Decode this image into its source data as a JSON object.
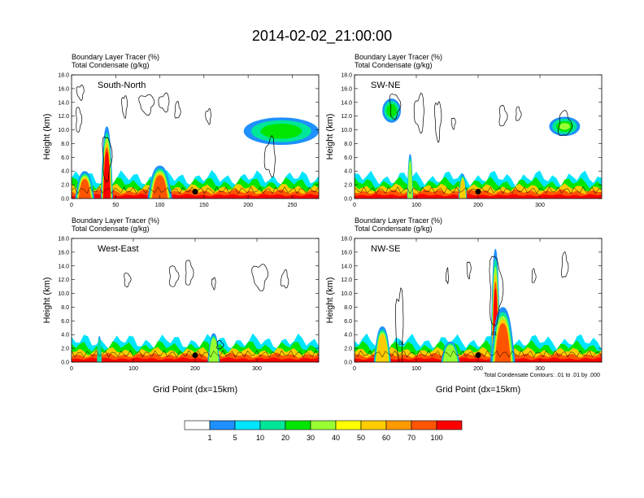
{
  "title": "2014-02-02_21:00:00",
  "colors": {
    "levels": [
      "#ffffff",
      "#1e90ff",
      "#00e5ff",
      "#00e699",
      "#00e600",
      "#99ff33",
      "#ffff00",
      "#ffcc00",
      "#ff9900",
      "#ff5500",
      "#ff0000"
    ],
    "contour": "#000000",
    "marker": "#000000"
  },
  "colorbar": {
    "labels": [
      "1",
      "5",
      "10",
      "20",
      "30",
      "40",
      "50",
      "60",
      "70",
      "100"
    ]
  },
  "note": "Total Condensate Contours: .01 to .01 by .000",
  "chart_data": [
    {
      "type": "heatmap",
      "title": "South-North",
      "subtitle_1": "Boundary Layer Tracer   (%)",
      "subtitle_2": "Total Condensate   (g/kg)",
      "ylabel": "Height (km)",
      "xlabel": "",
      "xlim": [
        0,
        280
      ],
      "ylim": [
        0,
        18
      ],
      "xticks": [
        "0",
        "50",
        "100",
        "150",
        "200",
        "250"
      ],
      "xtick_values": [
        0,
        50,
        100,
        150,
        200,
        250
      ],
      "yticks": [
        "0.0",
        "2.0",
        "4.0",
        "6.0",
        "8.0",
        "10.0",
        "12.0",
        "14.0",
        "16.0",
        "18.0"
      ],
      "marker": {
        "x": 140,
        "y": 1.0
      },
      "plumes": [
        {
          "x": 40,
          "w": 14,
          "top": 10.5,
          "peak": 100
        },
        {
          "x": 100,
          "w": 28,
          "top": 4.8,
          "peak": 70
        },
        {
          "x": 15,
          "w": 22,
          "top": 4.0,
          "peak": 70
        }
      ],
      "anvils": [
        {
          "x0": 195,
          "x1": 280,
          "y": 9.8,
          "h": 4.0,
          "peak": 20
        }
      ],
      "contours": [
        {
          "x": 10,
          "y": 15.5,
          "rx": 4,
          "ry": 1.0
        },
        {
          "x": 8,
          "y": 11.5,
          "rx": 3,
          "ry": 1.8
        },
        {
          "x": 60,
          "y": 13.5,
          "rx": 3,
          "ry": 1.5
        },
        {
          "x": 85,
          "y": 13.8,
          "rx": 8,
          "ry": 1.4
        },
        {
          "x": 105,
          "y": 14.0,
          "rx": 6,
          "ry": 1.2
        },
        {
          "x": 120,
          "y": 12.8,
          "rx": 3,
          "ry": 1.2
        },
        {
          "x": 155,
          "y": 12.0,
          "rx": 3,
          "ry": 1.0
        },
        {
          "x": 225,
          "y": 6.0,
          "rx": 6,
          "ry": 2.6
        },
        {
          "x": 40,
          "y": 6.0,
          "rx": 5,
          "ry": 3.2
        }
      ]
    },
    {
      "type": "heatmap",
      "title": "SW-NE",
      "subtitle_1": "Boundary Layer Tracer   (%)",
      "subtitle_2": "Total Condensate   (g/kg)",
      "ylabel": "Height (km)",
      "xlabel": "",
      "xlim": [
        0,
        400
      ],
      "ylim": [
        0,
        18
      ],
      "xticks": [
        "0",
        "100",
        "200",
        "300"
      ],
      "xtick_values": [
        0,
        100,
        200,
        300
      ],
      "yticks": [
        "0.0",
        "2.0",
        "4.0",
        "6.0",
        "8.0",
        "10.0",
        "12.0",
        "14.0",
        "16.0",
        "18.0"
      ],
      "marker": {
        "x": 200,
        "y": 1.0
      },
      "plumes": [
        {
          "x": 90,
          "w": 10,
          "top": 6.5,
          "peak": 30
        },
        {
          "x": 175,
          "w": 14,
          "top": 3.6,
          "peak": 60
        }
      ],
      "anvils": [
        {
          "x0": 45,
          "x1": 75,
          "y": 12.8,
          "h": 3.5,
          "peak": 20
        },
        {
          "x0": 315,
          "x1": 365,
          "y": 10.5,
          "h": 2.8,
          "peak": 30
        }
      ],
      "contours": [
        {
          "x": 65,
          "y": 13.5,
          "rx": 8,
          "ry": 1.8
        },
        {
          "x": 105,
          "y": 12.5,
          "rx": 8,
          "ry": 2.5
        },
        {
          "x": 135,
          "y": 11.5,
          "rx": 5,
          "ry": 2.8
        },
        {
          "x": 240,
          "y": 12.0,
          "rx": 6,
          "ry": 1.5
        },
        {
          "x": 265,
          "y": 12.3,
          "rx": 4,
          "ry": 1.0
        },
        {
          "x": 160,
          "y": 11.0,
          "rx": 3,
          "ry": 0.8
        },
        {
          "x": 340,
          "y": 10.8,
          "rx": 10,
          "ry": 1.8
        }
      ]
    },
    {
      "type": "heatmap",
      "title": "West-East",
      "subtitle_1": "Boundary Layer Tracer   (%)",
      "subtitle_2": "Total Condensate   (g/kg)",
      "ylabel": "Height (km)",
      "xlabel": "Grid Point (dx=15km)",
      "xlim": [
        0,
        400
      ],
      "ylim": [
        0,
        18
      ],
      "xticks": [
        "0",
        "100",
        "200",
        "300"
      ],
      "xtick_values": [
        0,
        100,
        200,
        300
      ],
      "yticks": [
        "0.0",
        "2.0",
        "4.0",
        "6.0",
        "8.0",
        "10.0",
        "12.0",
        "14.0",
        "16.0",
        "18.0"
      ],
      "marker": {
        "x": 200,
        "y": 1.0
      },
      "plumes": [
        {
          "x": 230,
          "w": 20,
          "top": 4.2,
          "peak": 40
        },
        {
          "x": 45,
          "w": 8,
          "top": 3.8,
          "peak": 20
        }
      ],
      "anvils": [],
      "contours": [
        {
          "x": 90,
          "y": 12.0,
          "rx": 5,
          "ry": 1.0
        },
        {
          "x": 165,
          "y": 12.5,
          "rx": 7,
          "ry": 1.5
        },
        {
          "x": 190,
          "y": 13.0,
          "rx": 6,
          "ry": 1.8
        },
        {
          "x": 230,
          "y": 11.5,
          "rx": 3,
          "ry": 0.8
        },
        {
          "x": 305,
          "y": 12.5,
          "rx": 12,
          "ry": 1.8
        },
        {
          "x": 345,
          "y": 12.0,
          "rx": 6,
          "ry": 1.2
        },
        {
          "x": 240,
          "y": 2.5,
          "rx": 5,
          "ry": 0.6
        }
      ]
    },
    {
      "type": "heatmap",
      "title": "NW-SE",
      "subtitle_1": "Boundary Layer Tracer   (%)",
      "subtitle_2": "Total Condensate   (g/kg)",
      "ylabel": "Height (km)",
      "xlabel": "Grid Point (dx=15km)",
      "xlim": [
        0,
        400
      ],
      "ylim": [
        0,
        18
      ],
      "xticks": [
        "0",
        "100",
        "200",
        "300"
      ],
      "xtick_values": [
        0,
        100,
        200,
        300
      ],
      "yticks": [
        "0.0",
        "2.0",
        "4.0",
        "6.0",
        "8.0",
        "10.0",
        "12.0",
        "14.0",
        "16.0",
        "18.0"
      ],
      "marker": {
        "x": 200,
        "y": 1.0
      },
      "plumes": [
        {
          "x": 228,
          "w": 16,
          "top": 16.5,
          "peak": 100
        },
        {
          "x": 240,
          "w": 40,
          "top": 8.0,
          "peak": 70
        },
        {
          "x": 45,
          "w": 28,
          "top": 5.2,
          "peak": 60
        },
        {
          "x": 155,
          "w": 30,
          "top": 3.0,
          "peak": 40
        }
      ],
      "anvils": [],
      "contours": [
        {
          "x": 73,
          "y": 5.0,
          "rx": 6,
          "ry": 5.5
        },
        {
          "x": 150,
          "y": 12.5,
          "rx": 2,
          "ry": 1.0
        },
        {
          "x": 185,
          "y": 13.5,
          "rx": 3,
          "ry": 1.2
        },
        {
          "x": 228,
          "y": 10.5,
          "rx": 10,
          "ry": 5.0
        },
        {
          "x": 340,
          "y": 14.0,
          "rx": 5,
          "ry": 1.8
        },
        {
          "x": 290,
          "y": 12.5,
          "rx": 3,
          "ry": 1.0
        }
      ],
      "labels": [
        {
          "x": 75,
          "y": 2.5,
          "text": ".01"
        },
        {
          "x": 225,
          "y": 3.9,
          "text": ".01"
        }
      ]
    }
  ]
}
